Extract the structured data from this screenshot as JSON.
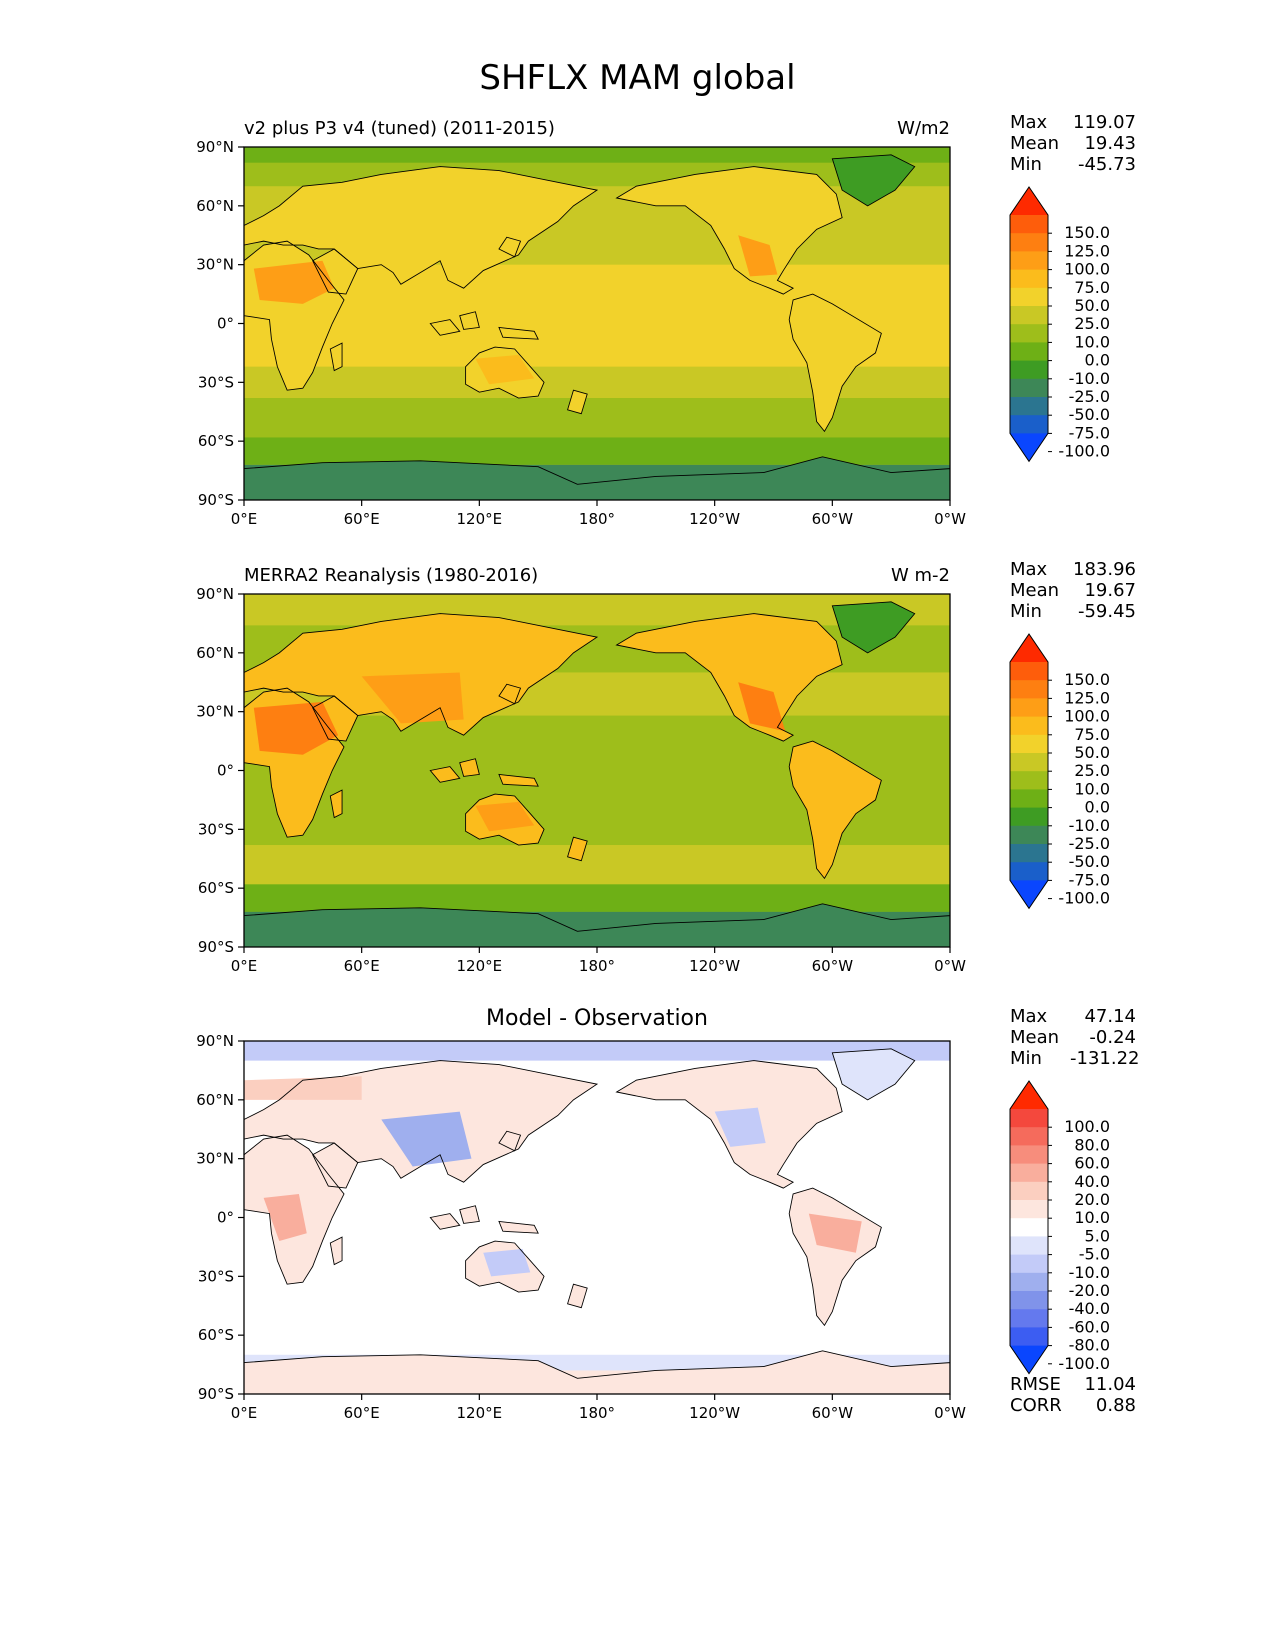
{
  "figure": {
    "title": "SHFLX MAM global",
    "lon_ticks": [
      "0°E",
      "60°E",
      "120°E",
      "180°",
      "120°W",
      "60°W",
      "0°W"
    ],
    "lat_ticks": [
      "90°N",
      "60°N",
      "30°N",
      "0°",
      "30°S",
      "60°S",
      "90°S"
    ]
  },
  "panels": [
    {
      "left_title": "v2 plus P3 v4 (tuned) (2011-2015)",
      "center_title": "",
      "units": "W/m2",
      "stats": [
        {
          "label": "Max",
          "value": "119.07"
        },
        {
          "label": "Mean",
          "value": "19.43"
        },
        {
          "label": "Min",
          "value": "-45.73"
        }
      ],
      "colorbar": {
        "levels": [
          "150.0",
          "125.0",
          "100.0",
          "75.0",
          "50.0",
          "25.0",
          "10.0",
          "0.0",
          "-10.0",
          "-25.0",
          "-50.0",
          "-75.0",
          "-100.0"
        ],
        "colors": [
          "#fe2a00",
          "#fe5d0b",
          "#fe7f11",
          "#fe9e16",
          "#fbbc1c",
          "#f2d22b",
          "#c9c825",
          "#9ebe1b",
          "#6eb016",
          "#3e9c23",
          "#3d8757",
          "#2b7590",
          "#1a5fca",
          "#0a46fe"
        ]
      }
    },
    {
      "left_title": "MERRA2 Reanalysis (1980-2016)",
      "center_title": "",
      "units": "W m-2",
      "stats": [
        {
          "label": "Max",
          "value": "183.96"
        },
        {
          "label": "Mean",
          "value": "19.67"
        },
        {
          "label": "Min",
          "value": "-59.45"
        }
      ],
      "colorbar": {
        "levels": [
          "150.0",
          "125.0",
          "100.0",
          "75.0",
          "50.0",
          "25.0",
          "10.0",
          "0.0",
          "-10.0",
          "-25.0",
          "-50.0",
          "-75.0",
          "-100.0"
        ],
        "colors": [
          "#fe2a00",
          "#fe5d0b",
          "#fe7f11",
          "#fe9e16",
          "#fbbc1c",
          "#f2d22b",
          "#c9c825",
          "#9ebe1b",
          "#6eb016",
          "#3e9c23",
          "#3d8757",
          "#2b7590",
          "#1a5fca",
          "#0a46fe"
        ]
      }
    },
    {
      "left_title": "",
      "center_title": "Model - Observation",
      "units": "",
      "stats": [
        {
          "label": "Max",
          "value": "47.14"
        },
        {
          "label": "Mean",
          "value": "-0.24"
        },
        {
          "label": "Min",
          "value": "-131.22"
        }
      ],
      "metrics": [
        {
          "label": "RMSE",
          "value": "11.04"
        },
        {
          "label": "CORR",
          "value": "0.88"
        }
      ],
      "colorbar": {
        "levels": [
          "100.0",
          "80.0",
          "60.0",
          "40.0",
          "20.0",
          "10.0",
          "5.0",
          "-5.0",
          "-10.0",
          "-20.0",
          "-40.0",
          "-60.0",
          "-80.0",
          "-100.0"
        ],
        "colors": [
          "#ff2a00",
          "#f4483d",
          "#f56b5c",
          "#f78d7c",
          "#f9ae9d",
          "#fbcfc0",
          "#fde6de",
          "#ffffff",
          "#dfe4fb",
          "#c3cbf8",
          "#9fafee",
          "#8093ea",
          "#6479ee",
          "#3c5df2",
          "#0a46fe"
        ]
      }
    }
  ]
}
